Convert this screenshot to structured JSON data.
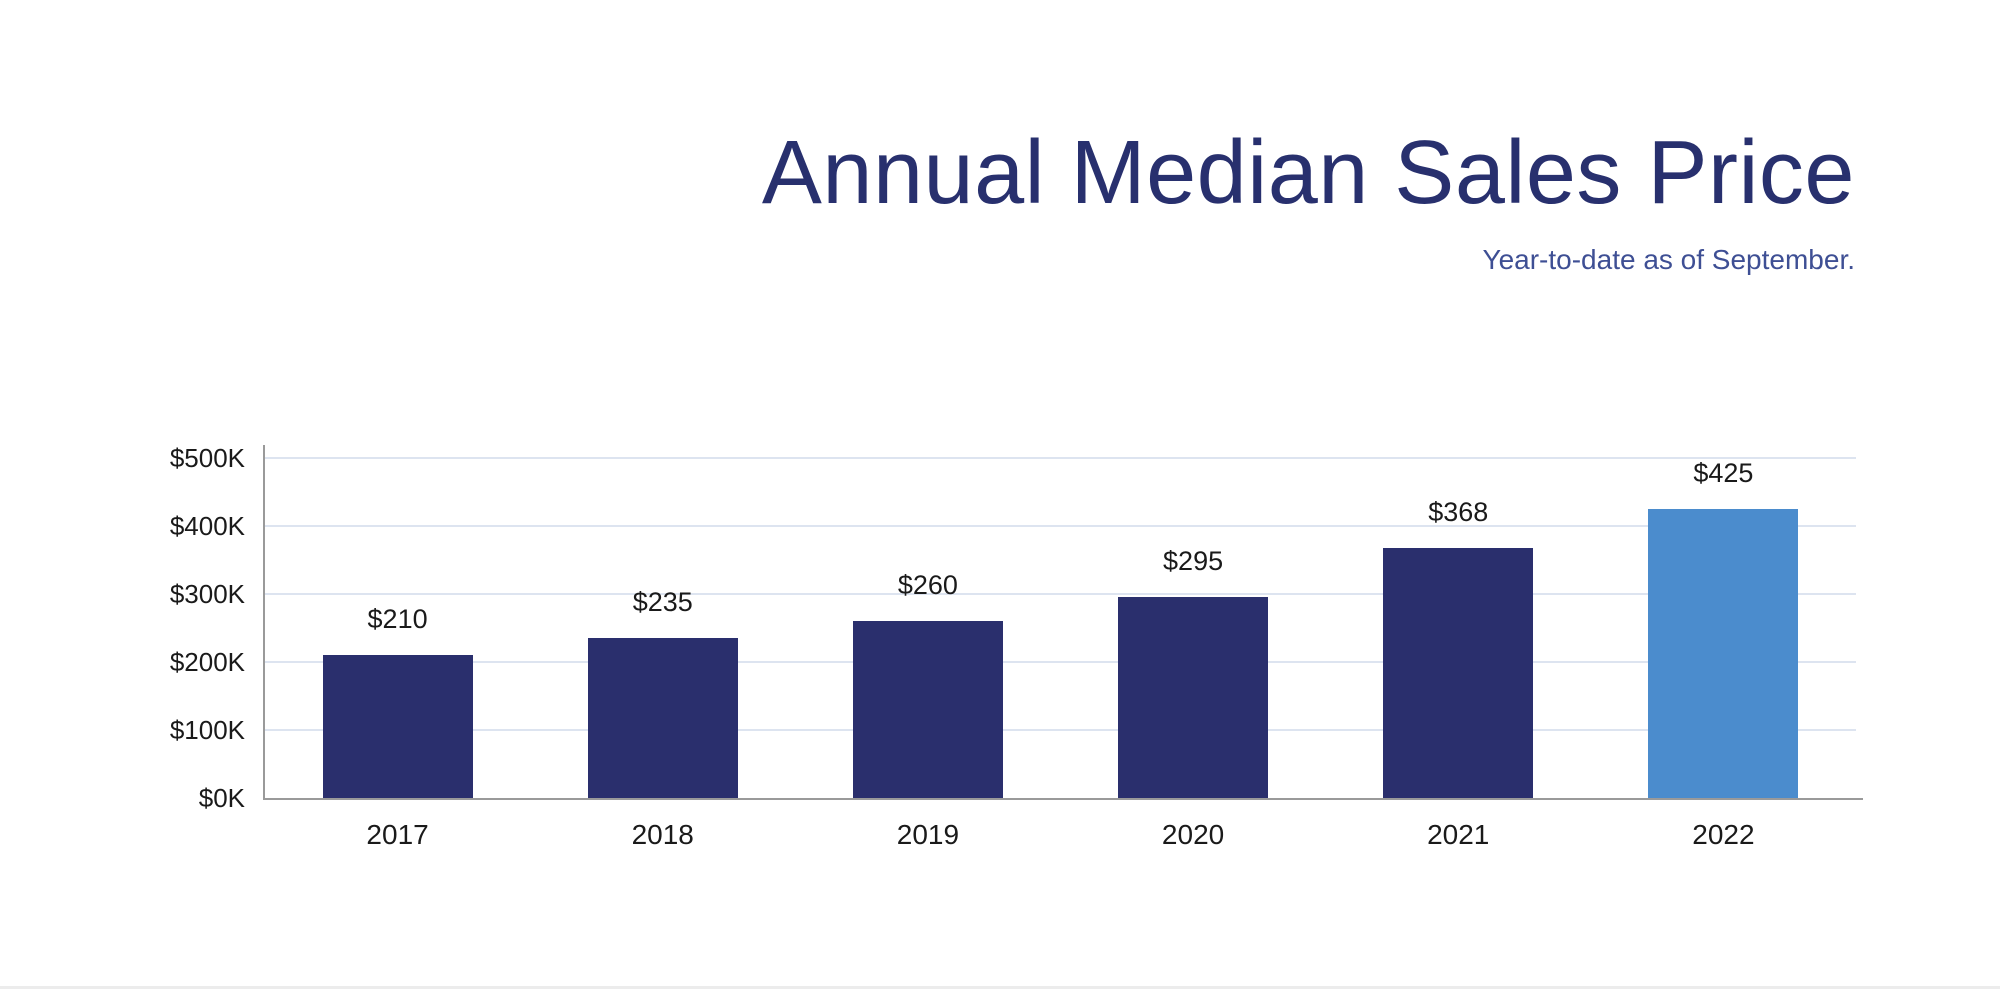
{
  "header": {
    "title": "Annual Median Sales Price",
    "subtitle": "Year-to-date as of September."
  },
  "colors": {
    "bar": "#2a2f6d",
    "highlight_bar": "#4b8ccd",
    "title": "#28306e",
    "subtitle": "#3e4f94",
    "gridline": "#dde4f0",
    "axis": "#9a9a9a",
    "label": "#1a1a1a"
  },
  "chart_data": {
    "type": "bar",
    "title": "Annual Median Sales Price",
    "subtitle": "Year-to-date as of September.",
    "categories": [
      "2017",
      "2018",
      "2019",
      "2020",
      "2021",
      "2022"
    ],
    "values": [
      210,
      235,
      260,
      295,
      368,
      425
    ],
    "value_labels": [
      "$210",
      "$235",
      "$260",
      "$295",
      "$368",
      "$425"
    ],
    "y_ticks": [
      "$0K",
      "$100K",
      "$200K",
      "$300K",
      "$400K",
      "$500K"
    ],
    "y_tick_values": [
      0,
      100,
      200,
      300,
      400,
      500
    ],
    "ylim": [
      0,
      500
    ],
    "xlabel": "",
    "ylabel": "",
    "grid": true,
    "legend": "none",
    "highlight_index": 5
  }
}
